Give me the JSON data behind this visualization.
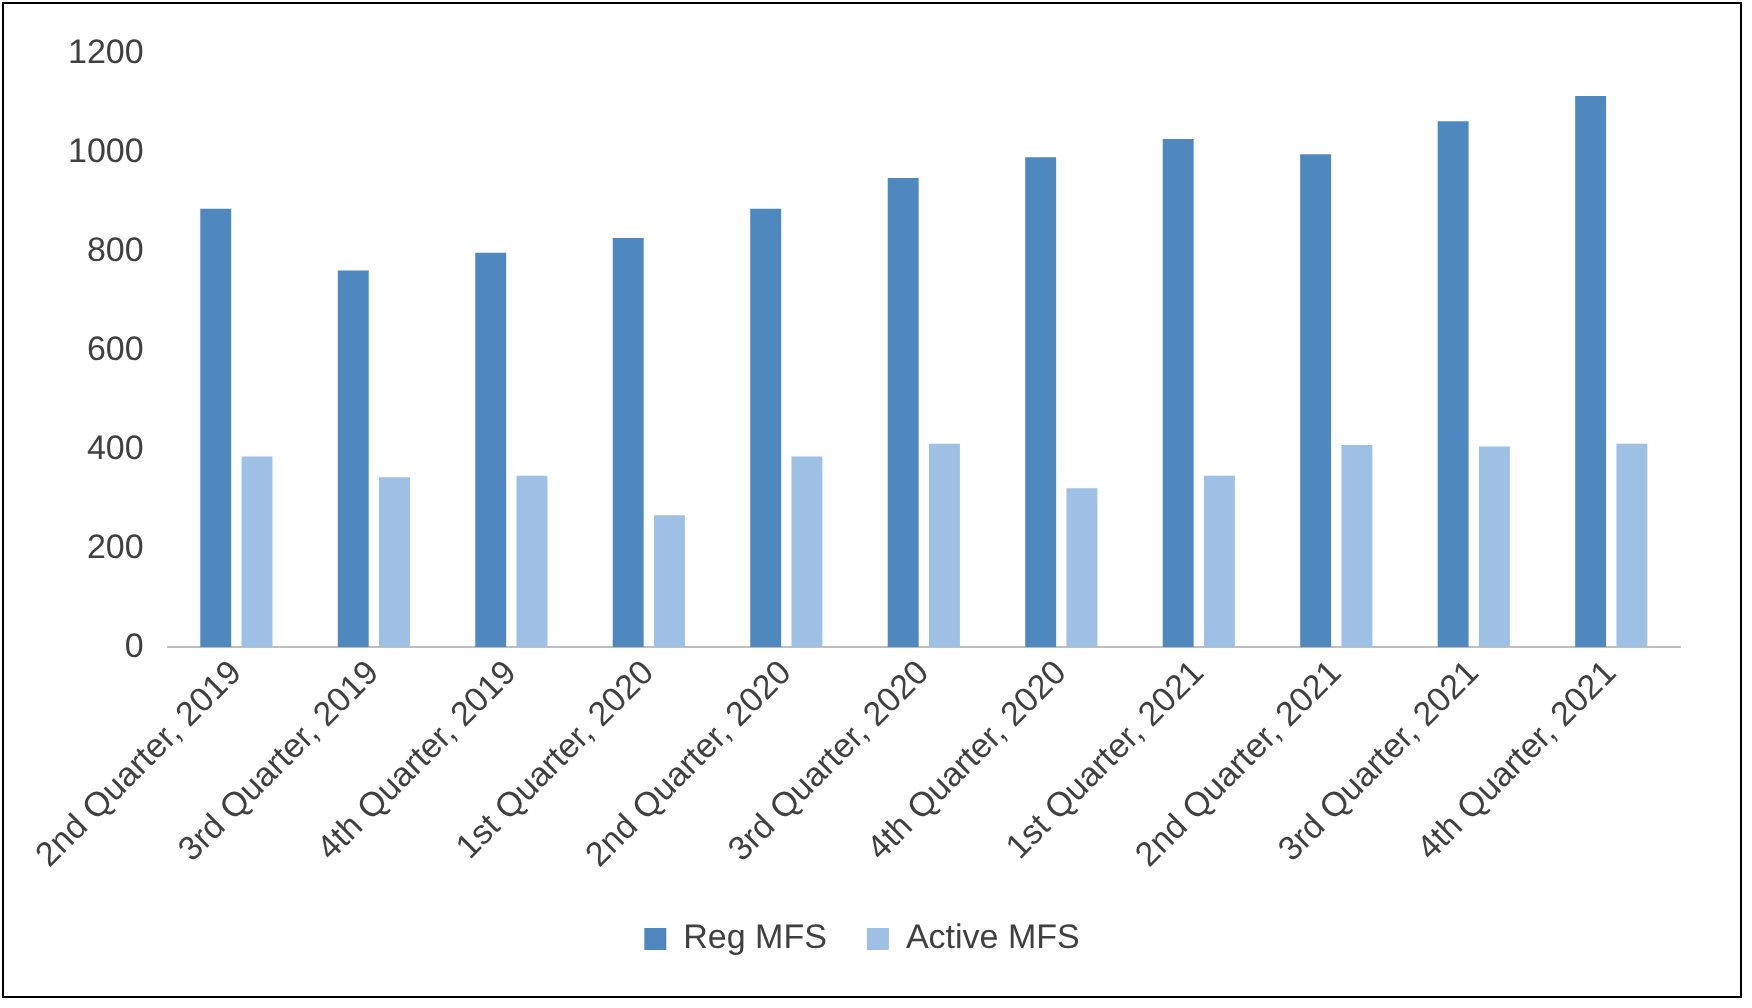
{
  "chart_data": {
    "type": "bar",
    "categories": [
      "2nd Quarter, 2019",
      "3rd Quarter, 2019",
      "4th Quarter, 2019",
      "1st Quarter, 2020",
      "2nd Quarter, 2020",
      "3rd Quarter, 2020",
      "4th Quarter, 2020",
      "1st Quarter, 2021",
      "2nd Quarter, 2021",
      "3rd Quarter, 2021",
      "4th Quarter, 2021"
    ],
    "series": [
      {
        "name": "Reg MFS",
        "color": "#4f87bf",
        "values": [
          887,
          762,
          798,
          828,
          887,
          949,
          991,
          1028,
          997,
          1064,
          1115
        ]
      },
      {
        "name": "Active MFS",
        "color": "#9dc0e4",
        "values": [
          386,
          344,
          347,
          267,
          386,
          412,
          322,
          347,
          409,
          406,
          412
        ]
      }
    ],
    "ylim": [
      0,
      1200
    ],
    "yticks": [
      0,
      200,
      400,
      600,
      800,
      1000,
      1200
    ],
    "grid": false,
    "legend": "bottom"
  }
}
